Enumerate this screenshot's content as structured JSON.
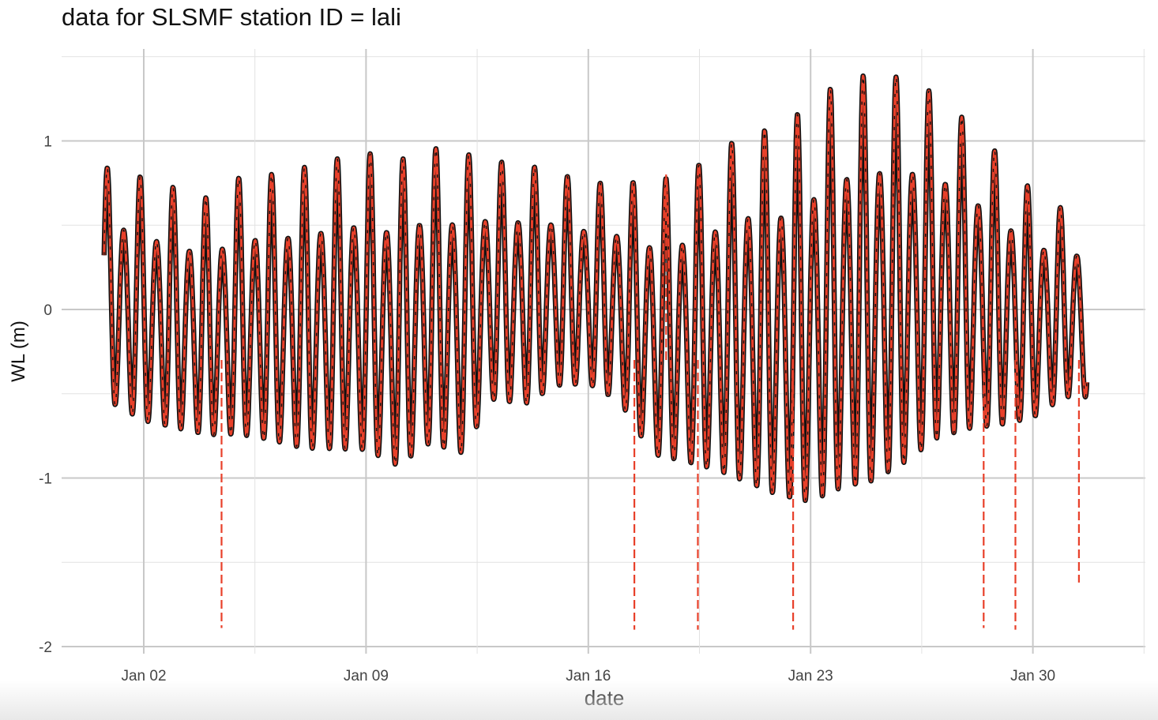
{
  "chart_data": {
    "type": "line",
    "title": "data for SLSMF station ID = lali",
    "xlabel": "date",
    "ylabel": "WL (m)",
    "x_tick_labels": [
      "Jan 02",
      "Jan 09",
      "Jan 16",
      "Jan 23",
      "Jan 30"
    ],
    "x_tick_dates": [
      2,
      9,
      16,
      23,
      30
    ],
    "y_tick_labels": [
      "1",
      "0",
      "-1",
      "-2"
    ],
    "y_tick_values": [
      1,
      0,
      -1,
      -2
    ],
    "xlim": [
      "Jan 01",
      "Feb 01"
    ],
    "ylim": [
      -2,
      1.5
    ],
    "grid": true,
    "colors": {
      "observed": "#111111",
      "filtered_dashed": "#e8402a",
      "grid": "#d9d9d9"
    },
    "series": [
      {
        "style": "solid thick black",
        "approx_tidal_highs": [
          {
            "x": "Jan 01",
            "y": 0.84
          },
          {
            "x": "Jan 02",
            "y": 0.78
          },
          {
            "x": "Jan 03",
            "y": 0.72
          },
          {
            "x": "Jan 04",
            "y": 0.66
          },
          {
            "x": "Jan 05",
            "y": 0.78
          },
          {
            "x": "Jan 06",
            "y": 0.8
          },
          {
            "x": "Jan 07",
            "y": 0.84
          },
          {
            "x": "Jan 08",
            "y": 0.89
          },
          {
            "x": "Jan 09",
            "y": 0.93
          },
          {
            "x": "Jan 10",
            "y": 0.88
          },
          {
            "x": "Jan 11",
            "y": 0.96
          },
          {
            "x": "Jan 12",
            "y": 0.93
          },
          {
            "x": "Jan 13",
            "y": 0.88
          },
          {
            "x": "Jan 14",
            "y": 0.86
          },
          {
            "x": "Jan 15",
            "y": 0.81
          },
          {
            "x": "Jan 16",
            "y": 0.75
          },
          {
            "x": "Jan 17",
            "y": 0.75
          },
          {
            "x": "Jan 18",
            "y": 0.76
          },
          {
            "x": "Jan 19",
            "y": 0.8
          },
          {
            "x": "Jan 20",
            "y": 0.92
          },
          {
            "x": "Jan 21",
            "y": 1.05
          },
          {
            "x": "Jan 22",
            "y": 1.07
          },
          {
            "x": "Jan 23",
            "y": 1.22
          },
          {
            "x": "Jan 24",
            "y": 1.36
          },
          {
            "x": "Jan 25",
            "y": 1.4
          },
          {
            "x": "Jan 26",
            "y": 1.37
          },
          {
            "x": "Jan 27",
            "y": 1.27
          },
          {
            "x": "Jan 28",
            "y": 1.1
          },
          {
            "x": "Jan 29",
            "y": 0.9
          },
          {
            "x": "Jan 30",
            "y": 0.7
          },
          {
            "x": "Jan 31",
            "y": 0.59
          }
        ],
        "approx_tidal_lows": [
          {
            "x": "Jan 01",
            "y": -0.72
          },
          {
            "x": "Jan 02",
            "y": -0.83
          },
          {
            "x": "Jan 03",
            "y": -0.87
          },
          {
            "x": "Jan 04",
            "y": -0.91
          },
          {
            "x": "Jan 05",
            "y": -0.92
          },
          {
            "x": "Jan 06",
            "y": -0.96
          },
          {
            "x": "Jan 07",
            "y": -1.02
          },
          {
            "x": "Jan 08",
            "y": -1.03
          },
          {
            "x": "Jan 09",
            "y": -1.04
          },
          {
            "x": "Jan 10",
            "y": -1.14
          },
          {
            "x": "Jan 11",
            "y": -1.0
          },
          {
            "x": "Jan 12",
            "y": -1.06
          },
          {
            "x": "Jan 13",
            "y": -0.7
          },
          {
            "x": "Jan 14",
            "y": -0.73
          },
          {
            "x": "Jan 15",
            "y": -0.6
          },
          {
            "x": "Jan 16",
            "y": -0.58
          },
          {
            "x": "Jan 17",
            "y": -0.7
          },
          {
            "x": "Jan 18",
            "y": -1.05
          },
          {
            "x": "Jan 19",
            "y": -1.1
          },
          {
            "x": "Jan 20",
            "y": -1.17
          },
          {
            "x": "Jan 21",
            "y": -1.27
          },
          {
            "x": "Jan 22",
            "y": -1.36
          },
          {
            "x": "Jan 23",
            "y": -1.42
          },
          {
            "x": "Jan 24",
            "y": -1.34
          },
          {
            "x": "Jan 25",
            "y": -1.3
          },
          {
            "x": "Jan 26",
            "y": -1.17
          },
          {
            "x": "Jan 27",
            "y": -1.0
          },
          {
            "x": "Jan 28",
            "y": -0.92
          },
          {
            "x": "Jan 29",
            "y": -0.87
          },
          {
            "x": "Jan 30",
            "y": -0.8
          },
          {
            "x": "Jan 31",
            "y": -0.65
          }
        ]
      },
      {
        "style": "dashed red",
        "spikes": [
          {
            "x": "Jan 04",
            "y": -1.89
          },
          {
            "x": "Jan 17",
            "y": -1.9
          },
          {
            "x": "Jan 18",
            "y": 0.82
          },
          {
            "x": "Jan 19",
            "y": -1.9
          },
          {
            "x": "Jan 22",
            "y": -1.9
          },
          {
            "x": "Jan 28",
            "y": -1.89
          },
          {
            "x": "Jan 29",
            "y": -1.9
          },
          {
            "x": "Jan 31",
            "y": -1.62
          }
        ]
      }
    ]
  }
}
